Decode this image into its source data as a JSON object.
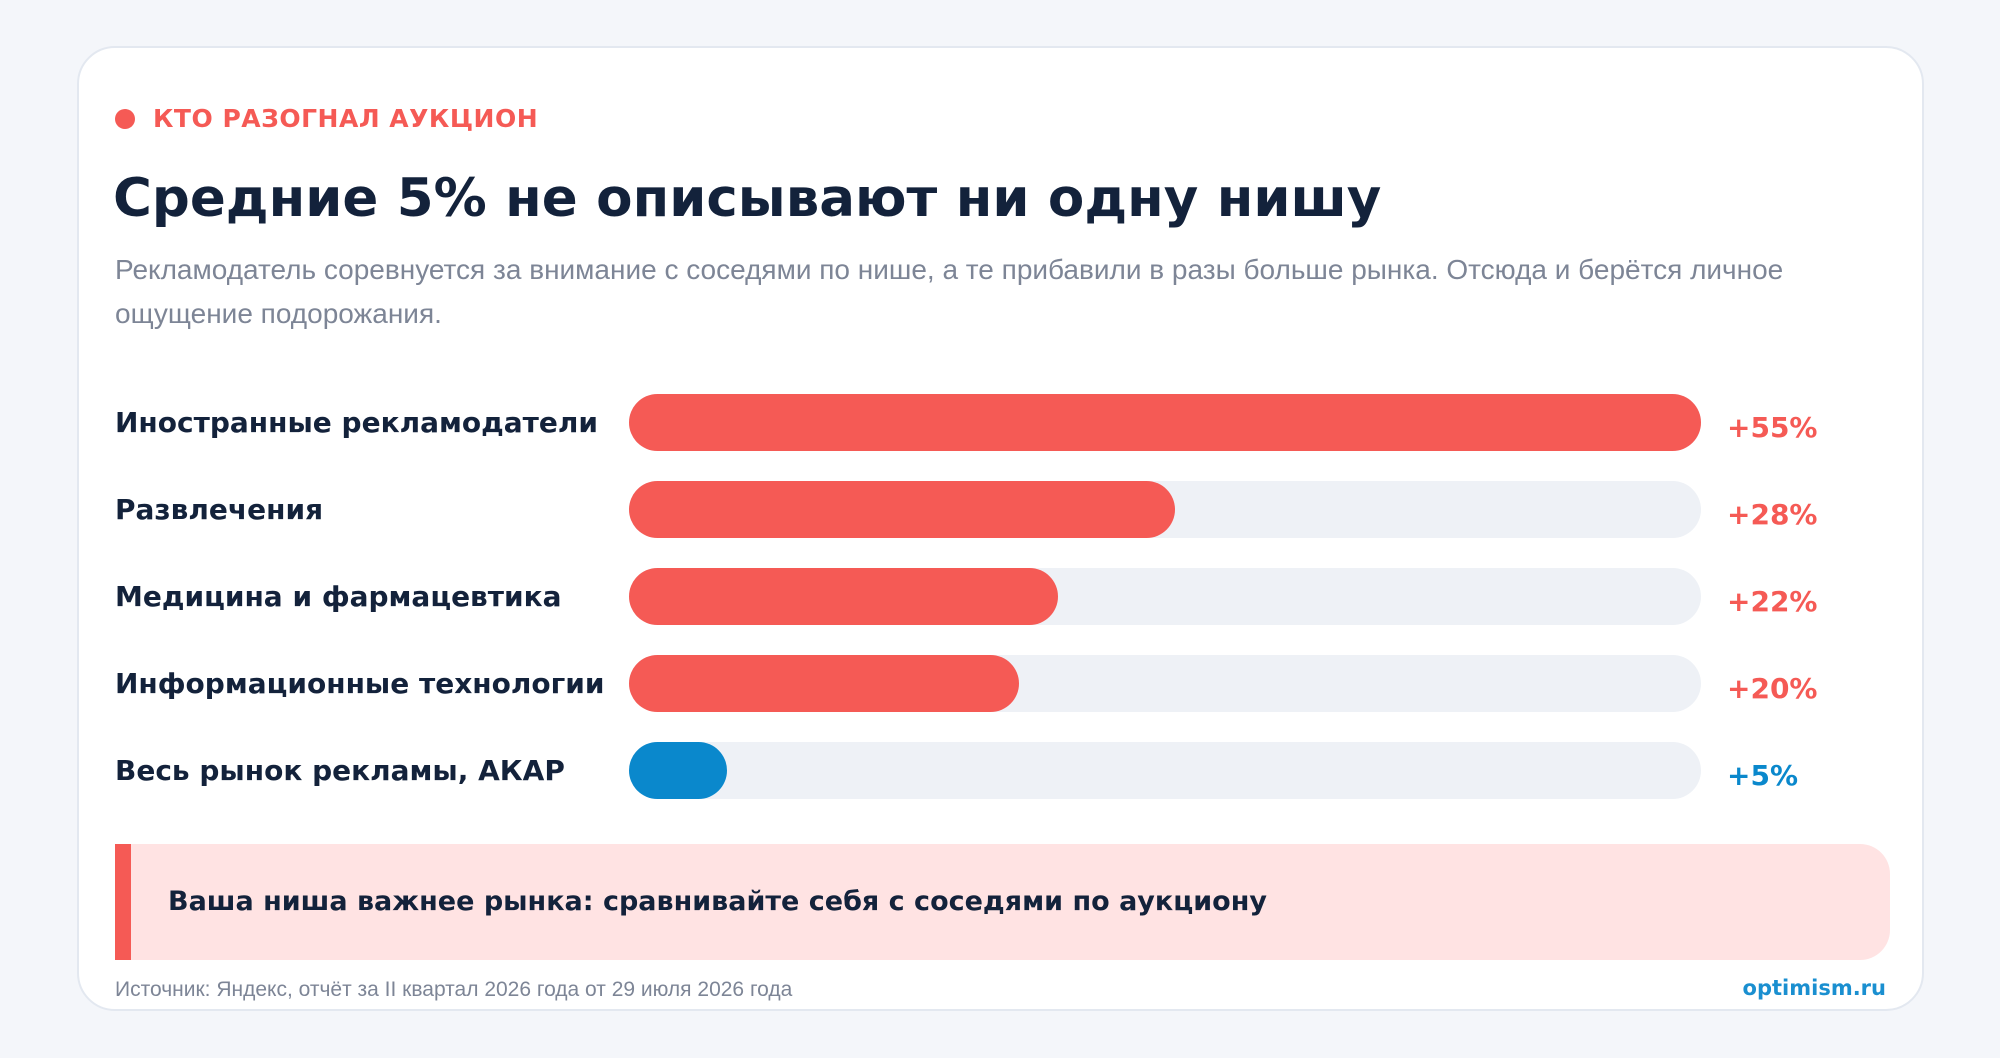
{
  "header": {
    "eyebrow": "КТО РАЗОГНАЛ АУКЦИОН",
    "title": "Средние 5% не описывают ни одну нишу",
    "subtitle": "Рекламодатель соревнуется за внимание с соседями по нише, а те прибавили в разы больше рынка. Отсюда и берётся личное ощущение подорожания."
  },
  "colors": {
    "accent": "#f55a55",
    "market": "#0a88cc",
    "track": "#eef1f6",
    "text": "#13223b",
    "muted": "#7d8596",
    "callout_bg": "#ffe3e3"
  },
  "chart_data": {
    "type": "bar",
    "orientation": "horizontal",
    "categories": [
      "Иностранные рекламодатели",
      "Развлечения",
      "Медицина и фармацевтика",
      "Информационные технологии",
      "Весь рынок рекламы, АКАР"
    ],
    "values": [
      55,
      28,
      22,
      20,
      5
    ],
    "value_labels": [
      "+55%",
      "+28%",
      "+22%",
      "+20%",
      "+5%"
    ],
    "highlight": [
      false,
      false,
      false,
      false,
      true
    ],
    "xlim": [
      0,
      55
    ],
    "grid": false,
    "legend": "none"
  },
  "callout": {
    "text": "Ваша ниша важнее рынка: сравнивайте себя с соседями по аукциону"
  },
  "footer": {
    "source": "Источник: Яндекс, отчёт за II квартал 2026 года от 29 июля 2026 года",
    "brand": "optimism.ru"
  }
}
